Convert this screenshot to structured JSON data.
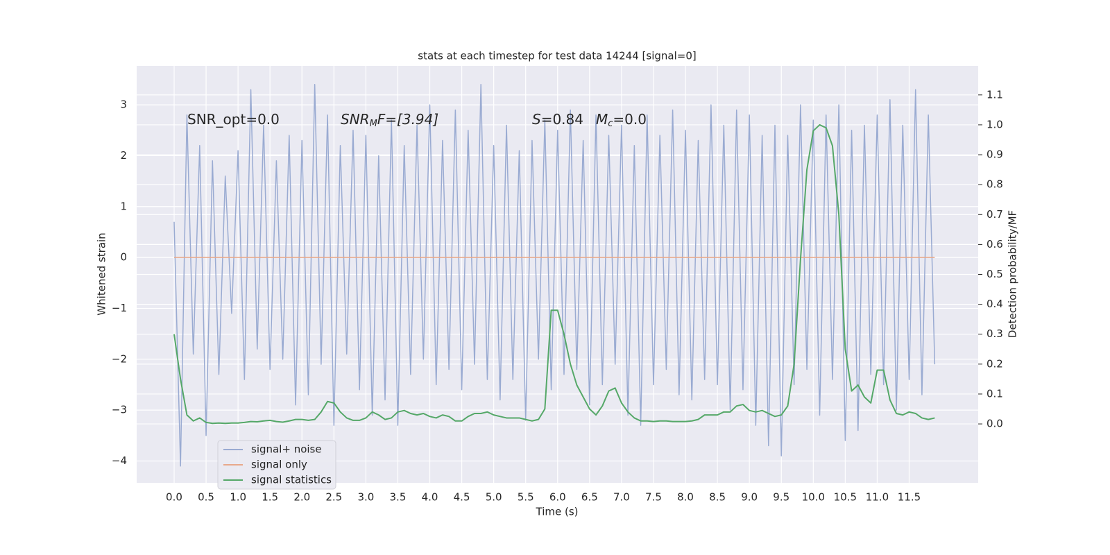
{
  "chart_data": {
    "type": "line",
    "title": "stats at each timestep for test data 14244 [signal=0]",
    "x_label": "Time (s)",
    "y_label": "Whitened strain",
    "y2_label": "Detection probability/MF",
    "annotations": [
      [
        "SNR_opt=0.0"
      ],
      [
        "SNR",
        "M",
        "F=[3.94]"
      ],
      [
        "S",
        "=0.84",
        "M",
        "c",
        "=0.0"
      ]
    ],
    "grid": true,
    "legend": "lower left",
    "xlim": [
      -0.586,
      12.58
    ],
    "ylim": [
      -4.43,
      3.765
    ],
    "y2lim": [
      -0.197,
      1.197
    ],
    "xticks": [
      {
        "value": 0,
        "label": "0.0"
      },
      0.5,
      {
        "value": 1,
        "label": "1.0"
      },
      1.5,
      {
        "value": 2,
        "label": "2.0"
      },
      2.5,
      {
        "value": 3,
        "label": "3.0"
      },
      3.5,
      {
        "value": 4,
        "label": "4.0"
      },
      4.5,
      {
        "value": 5,
        "label": "5.0"
      },
      5.5,
      {
        "value": 6,
        "label": "6.0"
      },
      6.5,
      {
        "value": 7,
        "label": "7.0"
      },
      7.5,
      {
        "value": 8,
        "label": "8.0"
      },
      8.5,
      {
        "value": 9,
        "label": "9.0"
      },
      9.5,
      {
        "value": 10,
        "label": "10.0"
      },
      10.5,
      {
        "value": 11,
        "label": "11.0"
      },
      11.5
    ],
    "yticks": [
      {
        "value": -4,
        "label": "−4"
      },
      {
        "value": -3,
        "label": "−3"
      },
      {
        "value": -2,
        "label": "−2"
      },
      {
        "value": -1,
        "label": "−1"
      },
      0,
      1,
      2,
      3
    ],
    "y2ticks": [
      {
        "value": 0,
        "label": "0.0"
      },
      0.1,
      0.2,
      0.3,
      0.4,
      0.5,
      0.6,
      0.7,
      0.8,
      0.9,
      {
        "value": 1,
        "label": "1.0"
      },
      1.1
    ],
    "x": [
      0,
      0.1,
      0.2,
      0.3,
      0.4,
      0.5,
      0.6,
      0.7,
      0.8,
      0.9,
      1,
      1.1,
      1.2,
      1.3,
      1.4,
      1.5,
      1.6,
      1.7,
      1.8,
      1.9,
      2,
      2.1,
      2.2,
      2.3,
      2.4,
      2.5,
      2.6,
      2.7,
      2.8,
      2.9,
      3,
      3.1,
      3.2,
      3.3,
      3.4,
      3.5,
      3.6,
      3.7,
      3.8,
      3.9,
      4,
      4.1,
      4.2,
      4.3,
      4.4,
      4.5,
      4.6,
      4.7,
      4.8,
      4.9,
      5,
      5.1,
      5.2,
      5.3,
      5.4,
      5.5,
      5.6,
      5.7,
      5.8,
      5.9,
      6,
      6.1,
      6.2,
      6.3,
      6.4,
      6.5,
      6.6,
      6.7,
      6.8,
      6.9,
      7,
      7.1,
      7.2,
      7.3,
      7.4,
      7.5,
      7.6,
      7.7,
      7.8,
      7.9,
      8,
      8.1,
      8.2,
      8.3,
      8.4,
      8.5,
      8.6,
      8.7,
      8.8,
      8.9,
      9,
      9.1,
      9.2,
      9.3,
      9.4,
      9.5,
      9.6,
      9.7,
      9.8,
      9.9,
      10,
      10.1,
      10.2,
      10.3,
      10.4,
      10.5,
      10.6,
      10.7,
      10.8,
      10.9,
      11,
      11.1,
      11.2,
      11.3,
      11.4,
      11.5,
      11.6,
      11.7,
      11.8,
      11.9
    ],
    "series": [
      {
        "name": "signal+ noise",
        "color": "#9aabd2",
        "values": [
          0.7,
          -4.1,
          2.8,
          -1.9,
          2.2,
          -3.5,
          1.9,
          -2.3,
          1.6,
          -1.1,
          2.1,
          -2.4,
          3.3,
          -1.8,
          2.6,
          -2.2,
          1.9,
          -2.0,
          2.4,
          -2.9,
          2.3,
          -2.7,
          3.4,
          -2.1,
          2.8,
          -3.3,
          2.2,
          -1.9,
          2.5,
          -2.6,
          2.4,
          -3.1,
          2.0,
          -2.8,
          2.7,
          -3.3,
          2.2,
          -2.3,
          2.6,
          -2.0,
          3.0,
          -2.5,
          2.3,
          -2.2,
          2.9,
          -2.6,
          2.5,
          -2.1,
          3.4,
          -2.4,
          2.2,
          -2.8,
          2.6,
          -2.4,
          2.1,
          -3.2,
          2.3,
          -2.0,
          2.7,
          -2.6,
          2.5,
          -2.3,
          2.9,
          -2.2,
          2.3,
          -2.9,
          2.8,
          -2.5,
          2.4,
          -2.1,
          2.6,
          -3.1,
          2.2,
          -3.3,
          2.8,
          -2.5,
          2.4,
          -2.2,
          2.9,
          -2.7,
          2.5,
          -2.8,
          2.3,
          -2.4,
          3.0,
          -2.5,
          2.6,
          -3.0,
          2.9,
          -2.6,
          2.8,
          -3.3,
          2.4,
          -3.7,
          2.6,
          -3.9,
          2.4,
          -2.5,
          3.0,
          -2.2,
          2.7,
          -3.1,
          2.8,
          -2.4,
          3.0,
          -3.6,
          2.5,
          -3.4,
          2.6,
          -2.3,
          2.8,
          -2.5,
          3.1,
          -3.0,
          2.6,
          -2.4,
          3.3,
          -2.7,
          2.8,
          -2.1
        ]
      },
      {
        "name": "signal only",
        "color": "#e8a98a",
        "values": [
          0,
          0,
          0,
          0,
          0,
          0,
          0,
          0,
          0,
          0,
          0,
          0,
          0,
          0,
          0,
          0,
          0,
          0,
          0,
          0,
          0,
          0,
          0,
          0,
          0,
          0,
          0,
          0,
          0,
          0,
          0,
          0,
          0,
          0,
          0,
          0,
          0,
          0,
          0,
          0,
          0,
          0,
          0,
          0,
          0,
          0,
          0,
          0,
          0,
          0,
          0,
          0,
          0,
          0,
          0,
          0,
          0,
          0,
          0,
          0,
          0,
          0,
          0,
          0,
          0,
          0,
          0,
          0,
          0,
          0,
          0,
          0,
          0,
          0,
          0,
          0,
          0,
          0,
          0,
          0,
          0,
          0,
          0,
          0,
          0,
          0,
          0,
          0,
          0,
          0,
          0,
          0,
          0,
          0,
          0,
          0,
          0,
          0,
          0,
          0,
          0,
          0,
          0,
          0,
          0,
          0,
          0,
          0,
          0,
          0,
          0,
          0,
          0,
          0,
          0,
          0,
          0,
          0,
          0,
          0
        ]
      },
      {
        "name": "signal statistics",
        "color": "#55a868",
        "axis": "y2",
        "values": [
          0.3,
          0.15,
          0.03,
          0.01,
          0.02,
          0.005,
          0.002,
          0.003,
          0.002,
          0.003,
          0.003,
          0.005,
          0.008,
          0.007,
          0.01,
          0.012,
          0.008,
          0.006,
          0.01,
          0.015,
          0.015,
          0.012,
          0.015,
          0.04,
          0.075,
          0.07,
          0.04,
          0.02,
          0.012,
          0.012,
          0.02,
          0.04,
          0.03,
          0.015,
          0.02,
          0.04,
          0.045,
          0.035,
          0.03,
          0.035,
          0.025,
          0.02,
          0.03,
          0.025,
          0.01,
          0.01,
          0.025,
          0.035,
          0.035,
          0.04,
          0.03,
          0.025,
          0.02,
          0.02,
          0.02,
          0.015,
          0.01,
          0.015,
          0.05,
          0.38,
          0.38,
          0.3,
          0.2,
          0.13,
          0.09,
          0.05,
          0.03,
          0.06,
          0.11,
          0.12,
          0.07,
          0.04,
          0.02,
          0.01,
          0.01,
          0.008,
          0.01,
          0.01,
          0.008,
          0.008,
          0.008,
          0.01,
          0.015,
          0.03,
          0.03,
          0.03,
          0.04,
          0.04,
          0.06,
          0.065,
          0.045,
          0.04,
          0.045,
          0.035,
          0.025,
          0.03,
          0.06,
          0.2,
          0.55,
          0.85,
          0.98,
          1.0,
          0.99,
          0.93,
          0.7,
          0.25,
          0.11,
          0.13,
          0.09,
          0.07,
          0.18,
          0.18,
          0.08,
          0.035,
          0.03,
          0.04,
          0.035,
          0.02,
          0.015,
          0.02
        ]
      }
    ]
  }
}
